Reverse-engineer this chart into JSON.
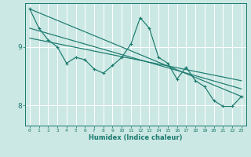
{
  "xlabel": "Humidex (Indice chaleur)",
  "background_color": "#cce8e4",
  "grid_color": "#ffffff",
  "line_color": "#1a7a6e",
  "xlim": [
    -0.5,
    23.5
  ],
  "ylim": [
    7.65,
    9.75
  ],
  "xtick_labels": [
    "0",
    "1",
    "2",
    "3",
    "4",
    "5",
    "6",
    "7",
    "8",
    "9",
    "10",
    "11",
    "12",
    "13",
    "14",
    "15",
    "16",
    "17",
    "18",
    "19",
    "20",
    "21",
    "22",
    "23"
  ],
  "ytick_labels": [
    "8",
    "9"
  ],
  "ytick_positions": [
    8.0,
    9.0
  ],
  "series1_x": [
    0,
    1,
    2,
    3,
    4,
    5,
    6,
    7,
    8,
    9,
    10,
    11,
    12,
    13,
    14,
    15,
    16,
    17,
    18,
    19,
    20,
    21,
    22,
    23
  ],
  "series1_y": [
    9.65,
    9.32,
    9.12,
    9.0,
    8.72,
    8.82,
    8.78,
    8.62,
    8.55,
    8.68,
    8.82,
    9.05,
    9.5,
    9.32,
    8.82,
    8.72,
    8.45,
    8.65,
    8.42,
    8.32,
    8.08,
    7.98,
    7.98,
    8.15
  ],
  "series2_x": [
    0,
    23
  ],
  "series2_y": [
    9.65,
    8.15
  ],
  "series3_x": [
    0,
    23
  ],
  "series3_y": [
    9.32,
    8.28
  ],
  "series4_x": [
    0,
    23
  ],
  "series4_y": [
    9.15,
    8.42
  ]
}
